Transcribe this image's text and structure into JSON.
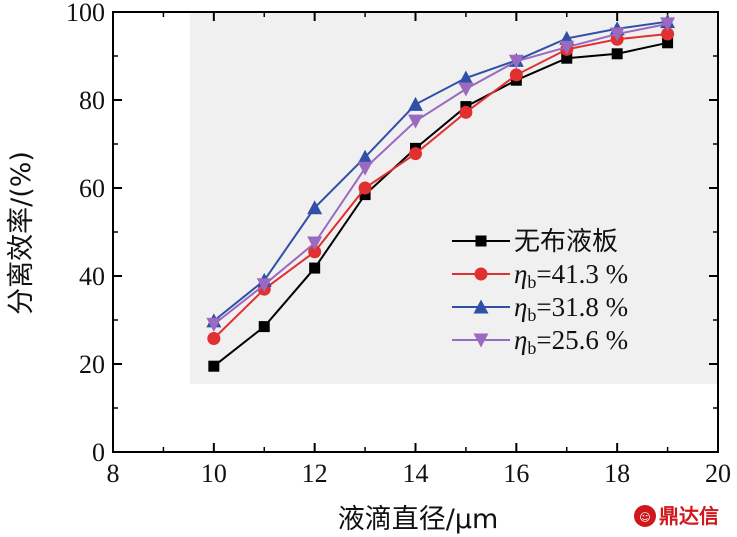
{
  "chart_data": {
    "type": "line",
    "title": "",
    "xlabel": "液滴直径/μm",
    "ylabel": "分离效率/(%)",
    "xlim": [
      8,
      20
    ],
    "ylim": [
      0,
      100
    ],
    "xticks": [
      "8",
      "10",
      "12",
      "14",
      "16",
      "18",
      "20"
    ],
    "yticks": [
      "0",
      "20",
      "40",
      "60",
      "80",
      "100"
    ],
    "x": [
      10,
      11,
      12,
      13,
      14,
      15,
      16,
      17,
      18,
      19
    ],
    "legend_position": "center-right",
    "grid": false,
    "series": [
      {
        "name": "无布液板",
        "marker": "square",
        "color": "#000000",
        "values": [
          19.5,
          28.5,
          41.8,
          58.5,
          69,
          78.5,
          84.5,
          89.5,
          90.5,
          93
        ]
      },
      {
        "name": "ηb=41.3 %",
        "marker": "circle",
        "color": "#e03030",
        "values": [
          25.8,
          37,
          45.5,
          60,
          67.8,
          77.2,
          85.7,
          91.5,
          93.8,
          95
        ]
      },
      {
        "name": "ηb=31.8 %",
        "marker": "triangle-up",
        "color": "#3050a8",
        "values": [
          29.8,
          39,
          55.5,
          67,
          79,
          85,
          89,
          94,
          96.2,
          97.8
        ]
      },
      {
        "name": "ηb=25.6 %",
        "marker": "triangle-down",
        "color": "#9a6ac0",
        "values": [
          29,
          38,
          47.5,
          64.5,
          75.2,
          82.5,
          88.8,
          92,
          95,
          97.3
        ]
      }
    ],
    "legend": [
      {
        "prefix": "无布液板",
        "sub": "",
        "suffix": ""
      },
      {
        "prefix": "η",
        "sub": "b",
        "suffix": "=41.3 %"
      },
      {
        "prefix": "η",
        "sub": "b",
        "suffix": "=31.8 %"
      },
      {
        "prefix": "η",
        "sub": "b",
        "suffix": "=25.6 %"
      }
    ]
  },
  "watermark": {
    "text": "鼎达信",
    "color": "#d0181c"
  }
}
